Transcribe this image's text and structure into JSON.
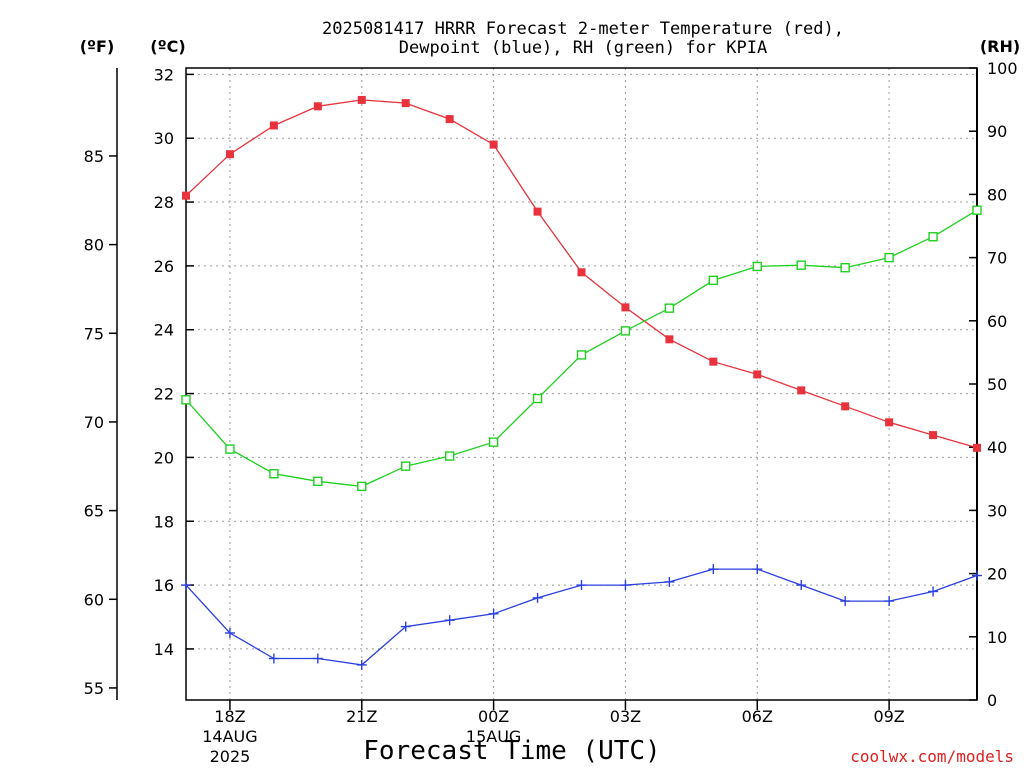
{
  "chart_data": {
    "type": "line",
    "title_line1": "2025081417 HRRR Forecast 2-meter Temperature (red),",
    "title_line2": "Dewpoint (blue), RH (green) for KPIA",
    "xlabel": "Forecast Time (UTC)",
    "credit": "coolwx.com/models",
    "unit_labels": {
      "fahrenheit": "(ºF)",
      "celsius": "(ºC)",
      "rh": "(RH)"
    },
    "x": [
      "17Z",
      "18Z",
      "19Z",
      "20Z",
      "21Z",
      "22Z",
      "23Z",
      "00Z",
      "01Z",
      "02Z",
      "03Z",
      "04Z",
      "05Z",
      "06Z",
      "07Z",
      "08Z",
      "09Z",
      "10Z",
      "11Z"
    ],
    "x_ticks": [
      {
        "hour": "18Z",
        "date_line1": "14AUG",
        "date_line2": "2025"
      },
      {
        "hour": "21Z",
        "date_line1": "",
        "date_line2": ""
      },
      {
        "hour": "00Z",
        "date_line1": "15AUG",
        "date_line2": ""
      },
      {
        "hour": "03Z",
        "date_line1": "",
        "date_line2": ""
      },
      {
        "hour": "06Z",
        "date_line1": "",
        "date_line2": ""
      },
      {
        "hour": "09Z",
        "date_line1": "",
        "date_line2": ""
      }
    ],
    "celsius_axis": {
      "ylim": [
        12.4,
        32.2
      ],
      "ticks": [
        14,
        16,
        18,
        20,
        22,
        24,
        26,
        28,
        30,
        32
      ]
    },
    "fahrenheit_axis": {
      "ticks": [
        55,
        60,
        65,
        70,
        75,
        80,
        85
      ]
    },
    "rh_axis": {
      "ylim": [
        0,
        100
      ],
      "ticks": [
        0,
        10,
        20,
        30,
        40,
        50,
        60,
        70,
        80,
        90,
        100
      ]
    },
    "grid": true,
    "series": [
      {
        "key": "temperature",
        "color": "#e8323c",
        "marker": "filled-square",
        "axis": "celsius",
        "values": [
          28.2,
          29.5,
          30.4,
          31.0,
          31.2,
          31.1,
          30.6,
          29.8,
          27.7,
          25.8,
          24.7,
          23.7,
          23.0,
          22.6,
          22.1,
          21.6,
          21.1,
          20.7,
          20.3
        ]
      },
      {
        "key": "dewpoint",
        "color": "#2a40e0",
        "marker": "plus",
        "axis": "celsius",
        "values": [
          16.0,
          14.5,
          13.7,
          13.7,
          13.5,
          14.7,
          14.9,
          15.1,
          15.6,
          16.0,
          16.0,
          16.1,
          16.5,
          16.5,
          16.0,
          15.5,
          15.5,
          15.8,
          16.3
        ]
      },
      {
        "key": "rh",
        "color": "#20d020",
        "marker": "open-square",
        "axis": "rh",
        "values": [
          47.5,
          39.7,
          35.8,
          34.6,
          33.8,
          37.0,
          38.6,
          40.8,
          47.7,
          54.6,
          58.4,
          62.0,
          66.4,
          68.6,
          68.8,
          68.4,
          70.0,
          73.3,
          77.5
        ]
      }
    ]
  }
}
